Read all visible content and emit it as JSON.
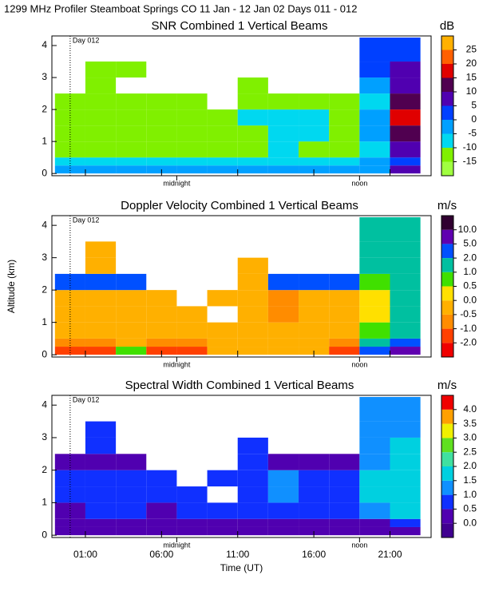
{
  "title": "1299 MHz Profiler  Steamboat Springs CO  11 Jan - 12 Jan 02 Days 011 - 012",
  "chart_data": [
    {
      "type": "heatmap",
      "title": "SNR Combined 1 Vertical Beams",
      "units": "dB",
      "xlim": [
        -1.2,
        23.7
      ],
      "xticks": [
        1,
        6,
        11,
        16,
        21
      ],
      "ylim": [
        -0.07,
        4.3
      ],
      "yticks": [
        0,
        1,
        2,
        3,
        4
      ],
      "day_line": {
        "value": 0,
        "label": "Day 012"
      },
      "markers": [
        {
          "value": 7,
          "label": "midnight"
        },
        {
          "value": 19,
          "label": "noon"
        }
      ],
      "xbins": [
        -1,
        1,
        3,
        5,
        7,
        9,
        11,
        13,
        15,
        17,
        19,
        21,
        23
      ],
      "ybins": [
        0,
        0.25,
        0.5,
        1,
        1.5,
        2,
        2.5,
        3,
        3.5,
        4.25
      ],
      "z": [
        [
          -3,
          -3,
          -4,
          -3,
          -4,
          -3,
          -4,
          -3,
          -4,
          -3,
          -4,
          5
        ],
        [
          -8,
          -8,
          -9,
          -8,
          -9,
          -8,
          -9,
          -8,
          -9,
          -8,
          -5,
          0
        ],
        [
          -12,
          -11,
          -12,
          -12,
          -13,
          -12,
          -11,
          -10,
          -11,
          -12,
          -8,
          5
        ],
        [
          -13,
          -13,
          -12,
          -13,
          -13,
          -14,
          -12,
          -9,
          -10,
          -12,
          -5,
          10
        ],
        [
          -14,
          -13,
          -14,
          -13,
          -14,
          -13,
          -10,
          -6,
          -7,
          -12,
          -5,
          15
        ],
        [
          -13,
          -14,
          -14,
          -14,
          -15,
          null,
          -13,
          -13,
          -13,
          -13,
          -10,
          10
        ],
        [
          null,
          -15,
          null,
          null,
          null,
          null,
          -14,
          null,
          null,
          null,
          -5,
          5
        ],
        [
          null,
          -15,
          -15,
          null,
          null,
          null,
          null,
          null,
          null,
          null,
          0,
          5
        ],
        [
          null,
          null,
          null,
          null,
          null,
          null,
          null,
          null,
          null,
          null,
          0,
          0
        ]
      ],
      "cbar_ticks": [
        -15,
        -10,
        -5,
        0,
        5,
        10,
        15,
        20,
        25
      ],
      "cbar_colors": [
        "#a0ff40",
        "#80f000",
        "#00d8f0",
        "#00a0ff",
        "#0040ff",
        "#5000b0",
        "#500050",
        "#e00000",
        "#ff6000",
        "#ffb000"
      ]
    },
    {
      "type": "heatmap",
      "title": "Doppler Velocity Combined 1 Vertical Beams",
      "units": "m/s",
      "ylabel": "Altitude (km)",
      "xlim": [
        -1.2,
        23.7
      ],
      "xticks": [
        1,
        6,
        11,
        16,
        21
      ],
      "ylim": [
        -0.07,
        4.3
      ],
      "yticks": [
        0,
        1,
        2,
        3,
        4
      ],
      "day_line": {
        "value": 0,
        "label": "Day 012"
      },
      "markers": [
        {
          "value": 7,
          "label": "midnight"
        },
        {
          "value": 19,
          "label": "noon"
        }
      ],
      "xbins": [
        -1,
        1,
        3,
        5,
        7,
        9,
        11,
        13,
        15,
        17,
        19,
        21,
        23
      ],
      "ybins": [
        0,
        0.25,
        0.5,
        1,
        1.5,
        2,
        2.5,
        3,
        3.5,
        4.25
      ],
      "z": [
        [
          -2,
          -1.5,
          0.5,
          -2,
          -2,
          -0.5,
          -0.5,
          -0.5,
          -0.5,
          -2,
          2,
          5
        ],
        [
          -1,
          -1,
          -0.5,
          -1,
          -0.7,
          -0.3,
          -0.3,
          -0.5,
          -0.5,
          -1,
          1,
          2
        ],
        [
          -0.3,
          -0.3,
          -0.3,
          -0.3,
          -0.3,
          -0.3,
          -0.5,
          -0.5,
          -0.5,
          -0.3,
          0.5,
          1
        ],
        [
          -0.3,
          -0.3,
          -0.3,
          -0.2,
          -0.3,
          null,
          -0.5,
          -0.7,
          -0.5,
          -0.3,
          0,
          1
        ],
        [
          -0.3,
          -0.3,
          -0.2,
          -0.2,
          null,
          -0.3,
          -0.5,
          -0.8,
          -0.5,
          -0.2,
          0,
          1
        ],
        [
          2,
          2,
          2,
          null,
          null,
          null,
          -0.3,
          2,
          2,
          2,
          0.5,
          1
        ],
        [
          null,
          -0.3,
          null,
          null,
          null,
          null,
          -0.5,
          null,
          null,
          null,
          1,
          1
        ],
        [
          null,
          -0.3,
          null,
          null,
          null,
          null,
          null,
          null,
          null,
          null,
          1,
          1
        ],
        [
          null,
          null,
          null,
          null,
          null,
          null,
          null,
          null,
          null,
          null,
          1,
          1
        ]
      ],
      "cbar_ticks": [
        {
          "value": -2,
          "label": "-2.0"
        },
        {
          "value": -1,
          "label": "-1.0"
        },
        -0.5,
        {
          "value": 0,
          "label": "0.0"
        },
        0.5,
        {
          "value": 1,
          "label": "1.0"
        },
        {
          "value": 2,
          "label": "2.0"
        },
        {
          "value": 5,
          "label": "5.0"
        },
        {
          "value": 10,
          "label": "10.0"
        }
      ],
      "cbar_colors": [
        "#f00000",
        "#ff4000",
        "#ff8c00",
        "#ffb000",
        "#ffe000",
        "#40e000",
        "#00c0a0",
        "#0050ff",
        "#6000b0",
        "#300030"
      ]
    },
    {
      "type": "heatmap",
      "title": "Spectral Width Combined 1 Vertical Beams",
      "units": "m/s",
      "xlabel": "Time (UT)",
      "xlim": [
        -1.2,
        23.7
      ],
      "xticks": [
        {
          "value": 1,
          "label": "01:00"
        },
        {
          "value": 6,
          "label": "06:00"
        },
        {
          "value": 11,
          "label": "11:00"
        },
        {
          "value": 16,
          "label": "16:00"
        },
        {
          "value": 21,
          "label": "21:00"
        }
      ],
      "ylim": [
        -0.07,
        4.3
      ],
      "yticks": [
        0,
        1,
        2,
        3,
        4
      ],
      "day_line": {
        "value": 0,
        "label": "Day 012"
      },
      "markers": [
        {
          "value": 7,
          "label": "midnight"
        },
        {
          "value": 19,
          "label": "noon"
        }
      ],
      "xbins": [
        -1,
        1,
        3,
        5,
        7,
        9,
        11,
        13,
        15,
        17,
        19,
        21,
        23
      ],
      "ybins": [
        0,
        0.25,
        0.5,
        1,
        1.5,
        2,
        2.5,
        3,
        3.5,
        4.25
      ],
      "z": [
        [
          0.2,
          0.2,
          0.2,
          0.2,
          0.2,
          0.2,
          0.2,
          0.2,
          0.2,
          0.2,
          0.2,
          0.2
        ],
        [
          0.3,
          0.2,
          0.3,
          0.3,
          0.3,
          0.2,
          0.3,
          0.3,
          0.3,
          0.3,
          0.3,
          0.8
        ],
        [
          0.4,
          0.6,
          0.6,
          0.4,
          0.6,
          0.6,
          0.7,
          0.8,
          0.6,
          0.6,
          1,
          1.5
        ],
        [
          0.6,
          0.7,
          0.6,
          0.7,
          0.7,
          null,
          0.7,
          1.2,
          0.8,
          0.7,
          1.5,
          1.8
        ],
        [
          0.7,
          0.7,
          0.6,
          0.6,
          null,
          0.6,
          0.8,
          1.2,
          0.8,
          0.7,
          1.5,
          1.8
        ],
        [
          0.2,
          0.2,
          0.2,
          null,
          null,
          null,
          0.6,
          0.2,
          0.2,
          0.2,
          1.2,
          1.5
        ],
        [
          null,
          0.6,
          null,
          null,
          null,
          null,
          0.7,
          null,
          null,
          null,
          1.3,
          1.5
        ],
        [
          null,
          0.6,
          null,
          null,
          null,
          null,
          null,
          null,
          null,
          null,
          1.2,
          1.3
        ],
        [
          null,
          null,
          null,
          null,
          null,
          null,
          null,
          null,
          null,
          null,
          1,
          1.2
        ]
      ],
      "cbar_ticks": [
        {
          "value": 0,
          "label": "0.0"
        },
        0.5,
        {
          "value": 1,
          "label": "1.0"
        },
        1.5,
        {
          "value": 2,
          "label": "2.0"
        },
        2.5,
        {
          "value": 3,
          "label": "3.0"
        },
        3.5,
        {
          "value": 4,
          "label": "4.0"
        }
      ],
      "cbar_colors": [
        "#400090",
        "#5000b0",
        "#1030ff",
        "#1090ff",
        "#00d0e0",
        "#40e0a0",
        "#60e020",
        "#f0f000",
        "#ffa000",
        "#f00000"
      ]
    }
  ]
}
